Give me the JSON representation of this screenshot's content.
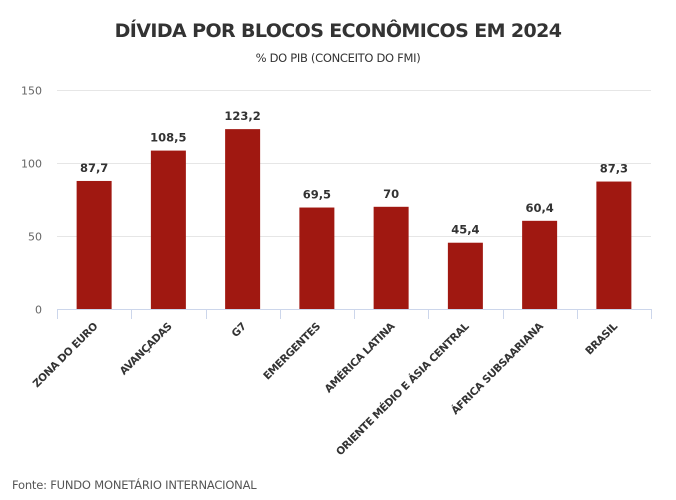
{
  "chart_data": {
    "type": "bar",
    "title": "DÍVIDA POR BLOCOS ECONÔMICOS EM 2024",
    "subtitle": "% DO PIB (CONCEITO DO FMI)",
    "xlabel": "",
    "ylabel": "",
    "ylim": [
      0,
      150
    ],
    "yticks": [
      0,
      50,
      100,
      150
    ],
    "ytick_labels": [
      "0",
      "50",
      "100",
      "150"
    ],
    "grid": true,
    "categories": [
      "ZONA DO EURO",
      "AVANÇADAS",
      "G7",
      "EMERGENTES",
      "AMÉRICA LATINA",
      "ORIENTE MÉDIO E ÁSIA CENTRAL",
      "ÁFRICA SUBSAARIANA",
      "BRASIL"
    ],
    "values": [
      87.7,
      108.5,
      123.2,
      69.5,
      70,
      45.4,
      60.4,
      87.3
    ],
    "data_labels": [
      "87,7",
      "108,5",
      "123,2",
      "69,5",
      "70",
      "45,4",
      "60,4",
      "87,3"
    ],
    "bar_color": "#a01811",
    "grid_color": "#e6e6e6",
    "axis_color": "#ccd6eb",
    "source": "Fonte: FUNDO MONETÁRIO INTERNACIONAL"
  }
}
